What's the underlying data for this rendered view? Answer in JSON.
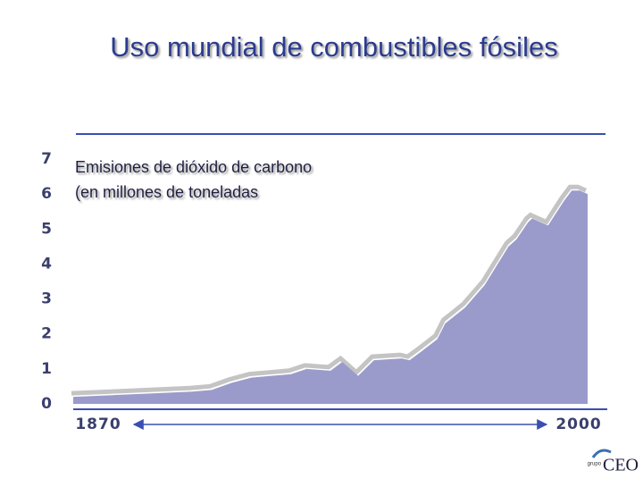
{
  "chart_data": {
    "type": "area",
    "title": "Uso mundial de combustibles fósiles",
    "subtitle": [
      "Emisiones de dióxido de carbono",
      "(en millones de toneladas"
    ],
    "x": [
      1870,
      1880,
      1890,
      1900,
      1905,
      1910,
      1915,
      1920,
      1925,
      1929,
      1935,
      1938,
      1942,
      1946,
      1953,
      1955,
      1958,
      1962,
      1964,
      1969,
      1974,
      1980,
      1982,
      1985,
      1986,
      1990,
      1994,
      1996,
      1998,
      2000
    ],
    "values": [
      0.2,
      0.25,
      0.3,
      0.35,
      0.4,
      0.6,
      0.75,
      0.8,
      0.85,
      1.0,
      0.95,
      1.2,
      0.8,
      1.25,
      1.3,
      1.25,
      1.5,
      1.85,
      2.3,
      2.75,
      3.4,
      4.5,
      4.7,
      5.2,
      5.3,
      5.1,
      5.8,
      6.1,
      6.1,
      6.0
    ],
    "color": "#9a9bcb",
    "shadow_color": "#c4c4c4",
    "xlim": [
      1870,
      2000
    ],
    "xticks": [
      1870,
      2000
    ],
    "ylim": [
      0,
      7
    ],
    "yticks": [
      0,
      1,
      2,
      3,
      4,
      5,
      6,
      7
    ],
    "grid": false
  },
  "logo": {
    "small": "grupo",
    "big": "CEO"
  }
}
